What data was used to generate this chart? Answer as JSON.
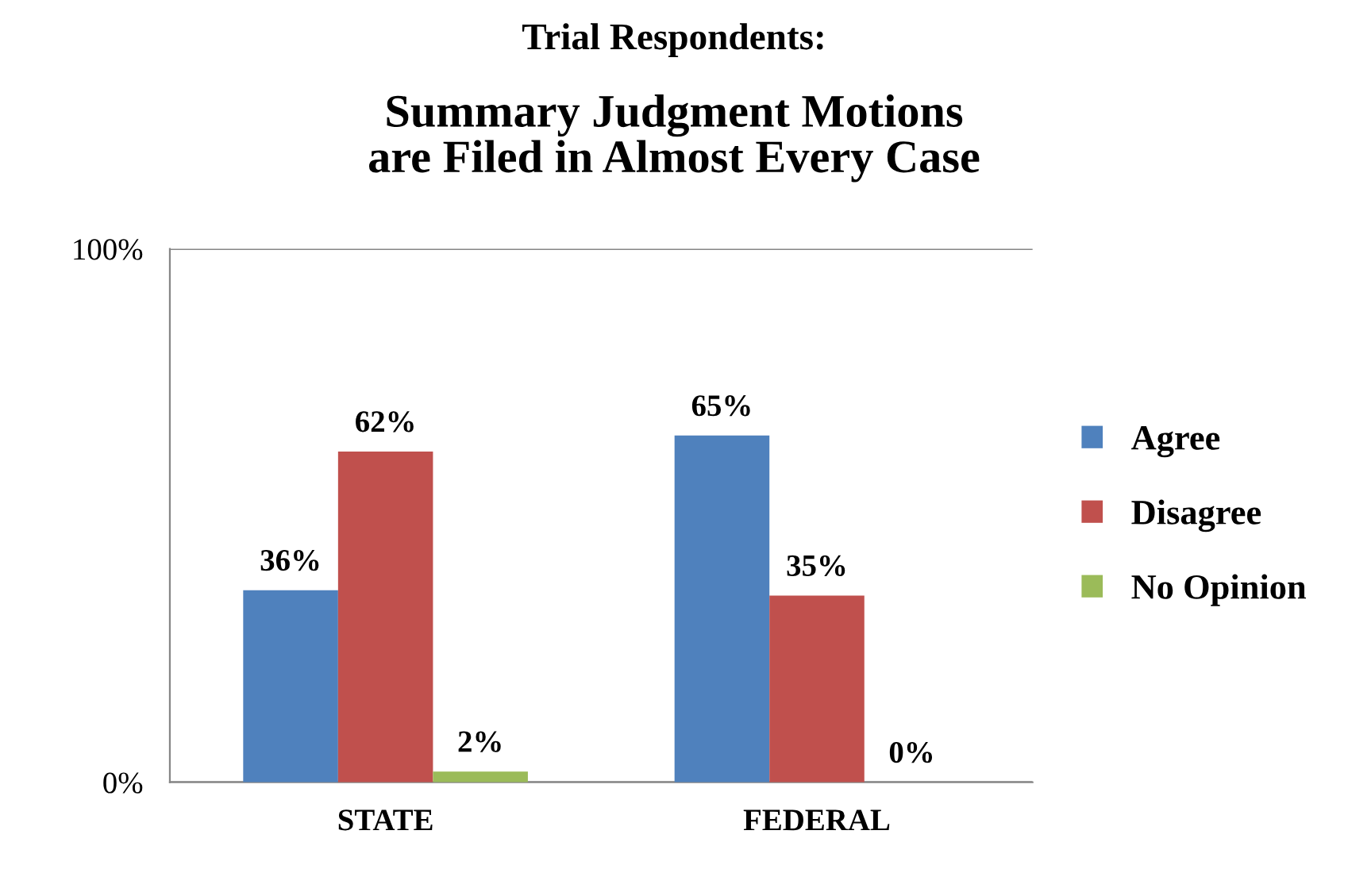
{
  "chart_data": {
    "type": "bar",
    "title": "Trial Respondents:",
    "subtitle": "Summary Judgment Motions\nare Filed in Almost Every Case",
    "categories": [
      "STATE",
      "FEDERAL"
    ],
    "series": [
      {
        "name": "Agree",
        "color": "#4f81bd",
        "values": [
          36,
          65
        ]
      },
      {
        "name": "Disagree",
        "color": "#c0504d",
        "values": [
          62,
          35
        ]
      },
      {
        "name": "No Opinion",
        "color": "#9bbb59",
        "values": [
          2,
          0
        ]
      }
    ],
    "ylim": [
      0,
      100
    ],
    "yticks": [
      {
        "value": 0,
        "label": "0%"
      },
      {
        "value": 100,
        "label": "100%"
      }
    ],
    "value_labels": [
      [
        "36%",
        "65%"
      ],
      [
        "62%",
        "35%"
      ],
      [
        "2%",
        "0%"
      ]
    ],
    "grid": "y",
    "legend": "right"
  }
}
